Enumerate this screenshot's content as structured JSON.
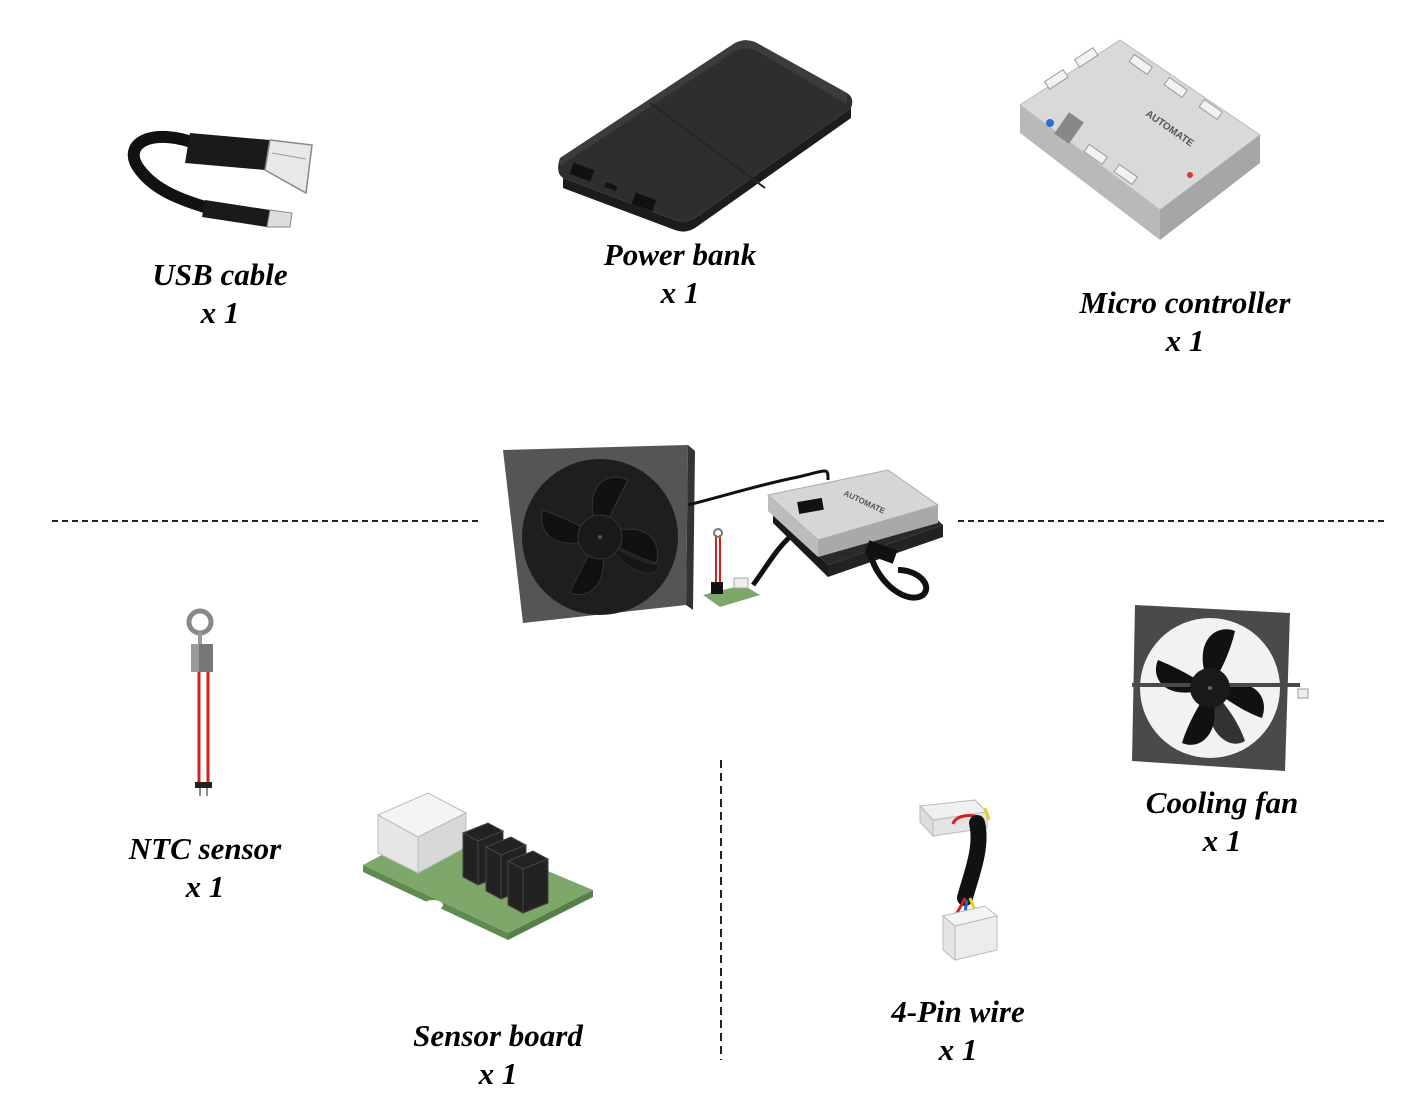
{
  "components": {
    "usb_cable": {
      "name": "USB cable",
      "qty": "x 1"
    },
    "power_bank": {
      "name": "Power bank",
      "qty": "x 1"
    },
    "micro_controller": {
      "name": "Micro controller",
      "qty": "x 1",
      "logo": "AUTOMATE"
    },
    "ntc_sensor": {
      "name": "NTC sensor",
      "qty": "x 1"
    },
    "sensor_board": {
      "name": "Sensor board",
      "qty": "x 1"
    },
    "four_pin_wire": {
      "name": "4-Pin wire",
      "qty": "x 1"
    },
    "cooling_fan": {
      "name": "Cooling fan",
      "qty": "x 1"
    }
  },
  "assembly": {
    "logo": "AUTOMATE"
  },
  "colors": {
    "background": "#ffffff",
    "text": "#000000",
    "device_gray": "#d4d4d4",
    "fan_frame": "#4a4a4a",
    "pcb_green": "#7da86a",
    "wire_red": "#d42020",
    "cable_black": "#111111"
  }
}
